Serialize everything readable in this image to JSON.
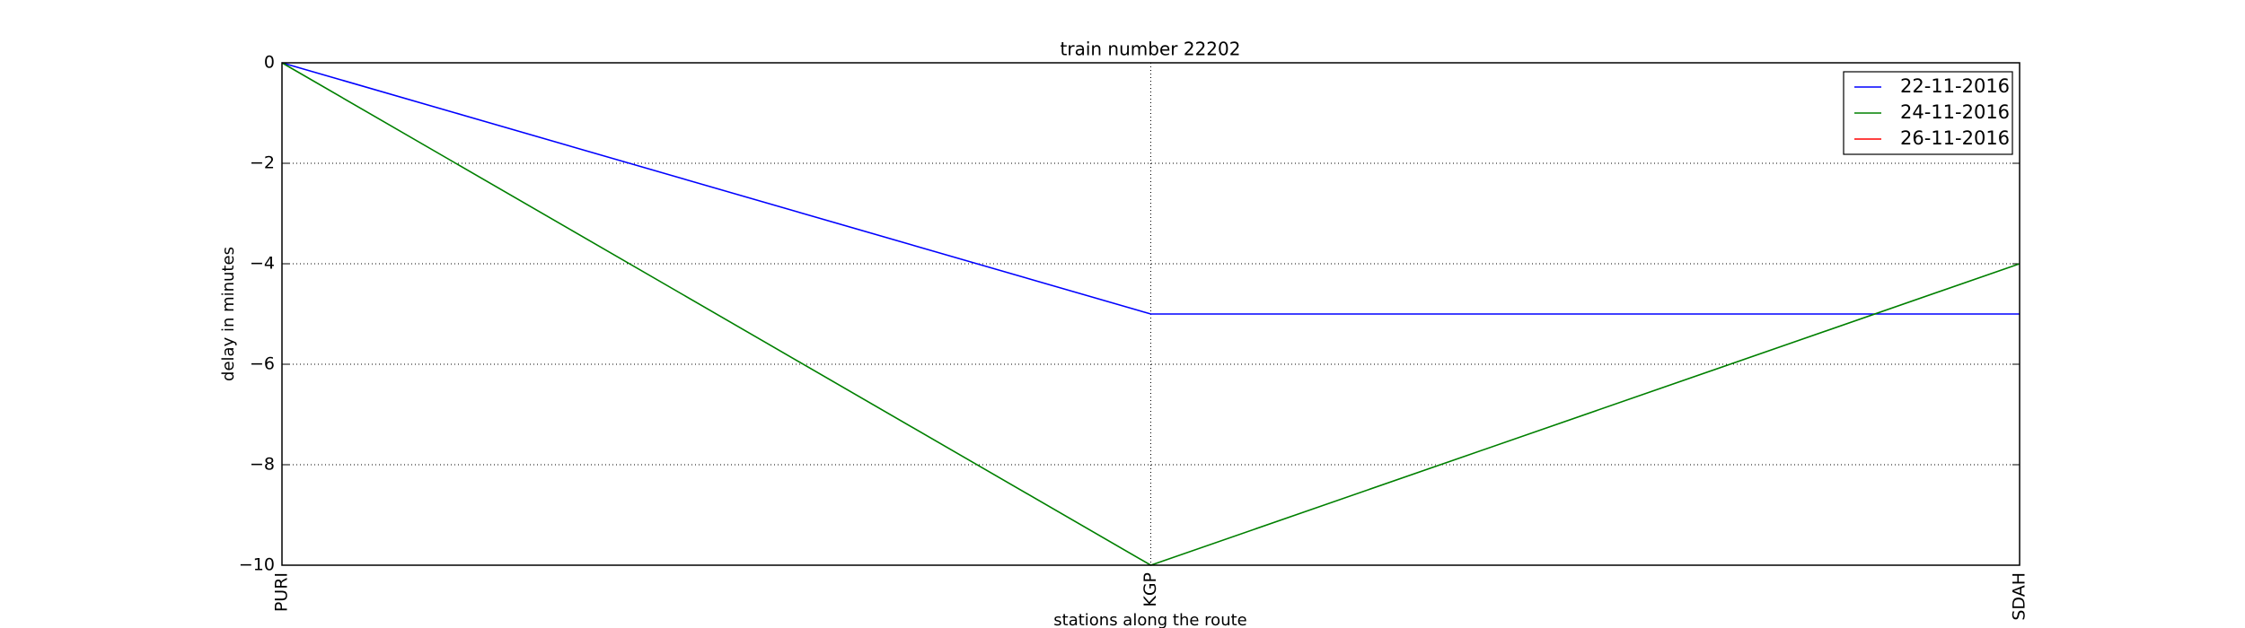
{
  "chart_data": {
    "type": "line",
    "title": "train number 22202",
    "x_label": "stations along the route",
    "y_label": "delay in minutes",
    "categories": [
      "PURI",
      "KGP",
      "SDAH"
    ],
    "series": [
      {
        "name": "22-11-2016",
        "color": "#0000ff",
        "values": [
          0,
          -5,
          -5
        ]
      },
      {
        "name": "24-11-2016",
        "color": "#008000",
        "values": [
          0,
          -10,
          -4
        ]
      },
      {
        "name": "26-11-2016",
        "color": "#ff0000",
        "values": [
          null,
          null,
          null
        ]
      }
    ],
    "ylim": [
      -10,
      0
    ],
    "yticks": [
      0,
      {
        "value": -2,
        "label": "−2"
      },
      {
        "value": -4,
        "label": "−4"
      },
      {
        "value": -6,
        "label": "−6"
      },
      {
        "value": -8,
        "label": "−8"
      },
      {
        "value": -10,
        "label": "−10"
      }
    ],
    "grid": true,
    "legend": "upper right"
  }
}
